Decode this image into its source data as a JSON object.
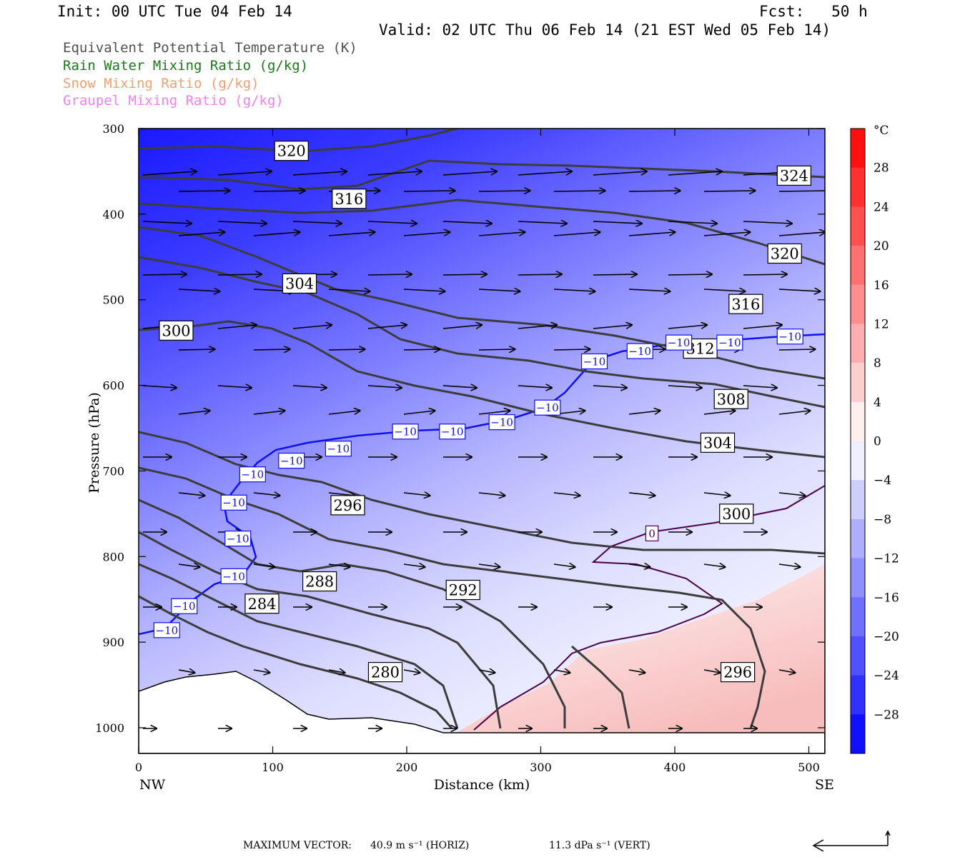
{
  "header": {
    "init": "Init: 00 UTC Tue 04 Feb 14",
    "fcst": "Fcst:   50 h",
    "valid": "Valid: 02 UTC Thu 06 Feb 14 (21 EST Wed 05 Feb 14)"
  },
  "legend": [
    {
      "label": "Equivalent Potential Temperature (K)",
      "color": "#505050"
    },
    {
      "label": "Rain Water Mixing Ratio (g/kg)",
      "color": "#1a7a1a"
    },
    {
      "label": "Snow Mixing Ratio (g/kg)",
      "color": "#f0a070"
    },
    {
      "label": "Graupel Mixing Ratio (g/kg)",
      "color": "#ee82ee"
    }
  ],
  "chart_data": {
    "type": "heatmap",
    "xlabel": "Distance (km)",
    "ylabel": "Pressure (hPa)",
    "xlim": [
      0,
      512
    ],
    "ylim": [
      1030,
      300
    ],
    "x_ticks": [
      "0",
      "100",
      "200",
      "300",
      "400",
      "500"
    ],
    "x_end_labels": {
      "left": "NW",
      "right": "SE"
    },
    "y_ticks": [
      "300",
      "400",
      "500",
      "600",
      "700",
      "800",
      "900",
      "1000"
    ],
    "colorbar": {
      "unit": "°C",
      "labels": [
        "28",
        "24",
        "20",
        "16",
        "12",
        "8",
        "4",
        "0",
        "−4",
        "−8",
        "−12",
        "−16",
        "−20",
        "−24",
        "−28"
      ],
      "range": [
        -32,
        32
      ]
    },
    "theta_e_labels": [
      {
        "text": "320",
        "x": 114,
        "p": 326
      },
      {
        "text": "324",
        "x": 489,
        "p": 355
      },
      {
        "text": "316",
        "x": 157,
        "p": 382
      },
      {
        "text": "320",
        "x": 482,
        "p": 446
      },
      {
        "text": "304",
        "x": 120,
        "p": 481
      },
      {
        "text": "316",
        "x": 453,
        "p": 505
      },
      {
        "text": "300",
        "x": 28,
        "p": 536
      },
      {
        "text": "312",
        "x": 419,
        "p": 557
      },
      {
        "text": "308",
        "x": 442,
        "p": 616
      },
      {
        "text": "304",
        "x": 432,
        "p": 667
      },
      {
        "text": "296",
        "x": 156,
        "p": 740
      },
      {
        "text": "300",
        "x": 446,
        "p": 750
      },
      {
        "text": "288",
        "x": 135,
        "p": 829
      },
      {
        "text": "292",
        "x": 242,
        "p": 839
      },
      {
        "text": "284",
        "x": 92,
        "p": 855
      },
      {
        "text": "280",
        "x": 184,
        "p": 935
      },
      {
        "text": "296",
        "x": 447,
        "p": 935
      }
    ],
    "temp_labels": [
      {
        "text": "−10",
        "x": 486,
        "p": 543
      },
      {
        "text": "−10",
        "x": 441,
        "p": 550
      },
      {
        "text": "−10",
        "x": 403,
        "p": 550
      },
      {
        "text": "−10",
        "x": 374,
        "p": 560
      },
      {
        "text": "−10",
        "x": 340,
        "p": 572
      },
      {
        "text": "−10",
        "x": 305,
        "p": 626
      },
      {
        "text": "−10",
        "x": 271,
        "p": 643
      },
      {
        "text": "−10",
        "x": 234,
        "p": 654
      },
      {
        "text": "−10",
        "x": 199,
        "p": 654
      },
      {
        "text": "−10",
        "x": 149,
        "p": 674
      },
      {
        "text": "−10",
        "x": 114,
        "p": 688
      },
      {
        "text": "−10",
        "x": 85,
        "p": 704
      },
      {
        "text": "−10",
        "x": 71,
        "p": 737
      },
      {
        "text": "−10",
        "x": 74,
        "p": 779
      },
      {
        "text": "−10",
        "x": 71,
        "p": 823
      },
      {
        "text": "−10",
        "x": 34,
        "p": 858
      },
      {
        "text": "−10",
        "x": 21,
        "p": 886
      },
      {
        "text": "0",
        "x": 383,
        "p": 773
      }
    ]
  },
  "footer": {
    "max_vector_label": "MAXIMUM VECTOR:",
    "horiz": "40.9 m s⁻¹ (HORIZ)",
    "vert": "11.3 dPa s⁻¹ (VERT)"
  }
}
